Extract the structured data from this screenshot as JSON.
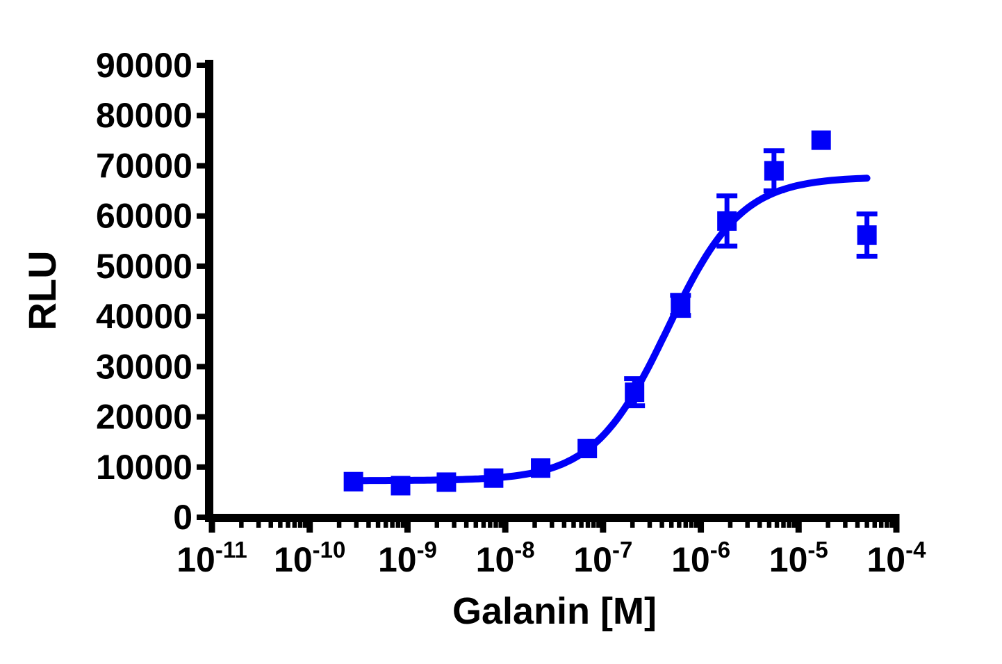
{
  "chart_data": {
    "type": "scatter",
    "subtype": "dose-response-curve-with-fit",
    "title": "",
    "xlabel": "Galanin [M]",
    "ylabel": "RLU",
    "x_scale": "log10",
    "x_tick_base": "10",
    "x_tick_exponents": [
      -11,
      -10,
      -9,
      -8,
      -7,
      -6,
      -5,
      -4
    ],
    "x_minor_multiples": [
      2,
      3,
      4,
      5,
      6,
      7,
      8,
      9
    ],
    "xlim_log": [
      -11,
      -4
    ],
    "ylim": [
      0,
      90000
    ],
    "y_ticks": [
      0,
      10000,
      20000,
      30000,
      40000,
      50000,
      60000,
      70000,
      80000,
      90000
    ],
    "grid": false,
    "legend": "none",
    "axis_color": "#000000",
    "series": [
      {
        "name": "Galanin",
        "color": "#0000f8",
        "marker": "filled-square",
        "points": [
          {
            "x": 2.8e-10,
            "y": 7100,
            "err": 0
          },
          {
            "x": 8.5e-10,
            "y": 6300,
            "err": 0
          },
          {
            "x": 2.5e-09,
            "y": 7000,
            "err": 0
          },
          {
            "x": 7.6e-09,
            "y": 7800,
            "err": 0
          },
          {
            "x": 2.3e-08,
            "y": 9800,
            "err": 0
          },
          {
            "x": 6.9e-08,
            "y": 13700,
            "err": 0
          },
          {
            "x": 2.1e-07,
            "y": 24900,
            "err": 2700
          },
          {
            "x": 6.2e-07,
            "y": 42200,
            "err": 2000
          },
          {
            "x": 1.85e-06,
            "y": 59000,
            "err": 5000
          },
          {
            "x": 5.6e-06,
            "y": 69000,
            "err": 4000
          },
          {
            "x": 1.7e-05,
            "y": 75100,
            "err": 0
          },
          {
            "x": 5e-05,
            "y": 56200,
            "err": 4200
          }
        ],
        "fit_curve": {
          "model": "four-parameter-logistic",
          "bottom": 7300,
          "top": 67800,
          "log_ec50": -6.34,
          "hill_slope": 1.15,
          "x_range_log": [
            -9.55,
            -4.3
          ]
        }
      }
    ]
  }
}
